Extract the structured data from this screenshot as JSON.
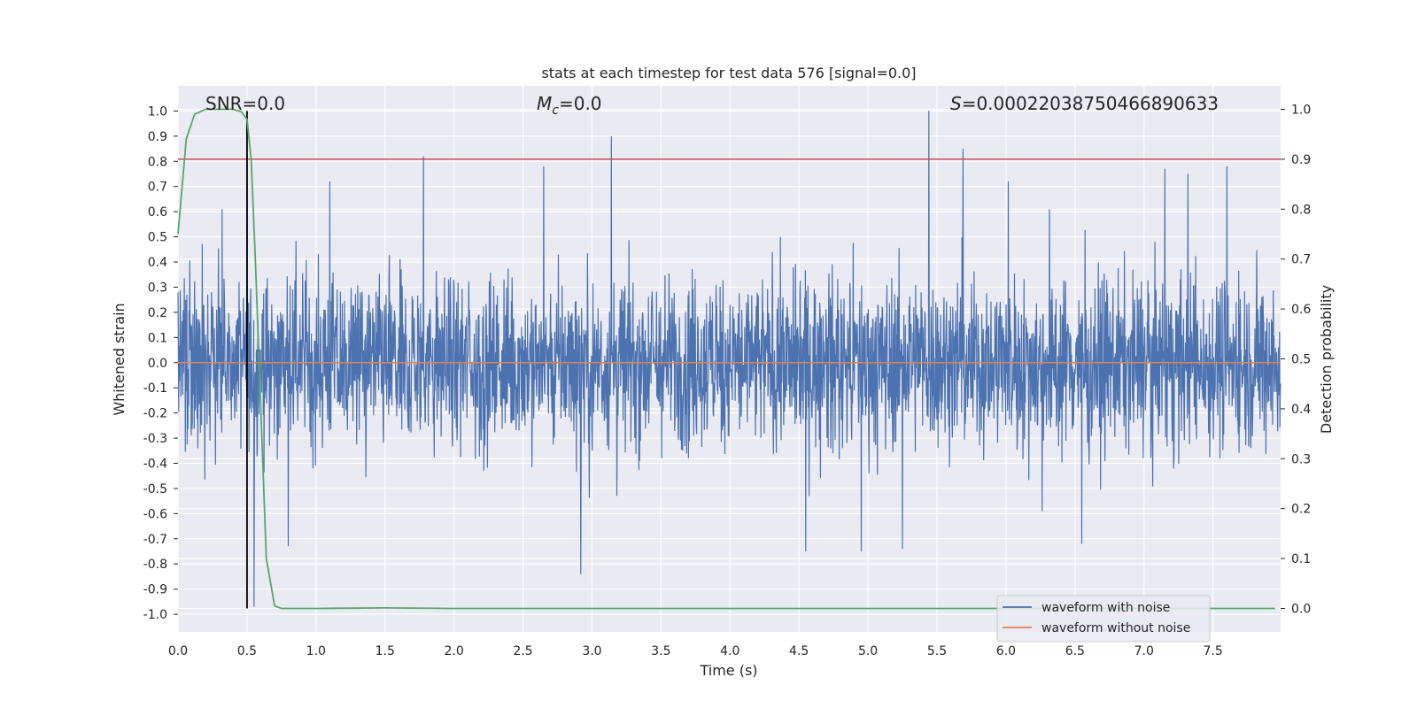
{
  "chart_data": {
    "type": "line",
    "title": "stats at each timestep for test data 576 [signal=0.0]",
    "xlabel": "Time (s)",
    "ylabel": "Whitened strain",
    "y2label": "Detection probability",
    "xlim": [
      0.0,
      7.99
    ],
    "ylim": [
      -1.07,
      1.1
    ],
    "y2lim": [
      -0.047,
      1.047
    ],
    "xticks": [
      0.0,
      0.5,
      1.0,
      1.5,
      2.0,
      2.5,
      3.0,
      3.5,
      4.0,
      4.5,
      5.0,
      5.5,
      6.0,
      6.5,
      7.0,
      7.5
    ],
    "xtick_labels": [
      "0.0",
      "0.5",
      "1.0",
      "1.5",
      "2.0",
      "2.5",
      "3.0",
      "3.5",
      "4.0",
      "4.5",
      "5.0",
      "5.5",
      "6.0",
      "6.5",
      "7.0",
      "7.5"
    ],
    "yticks": [
      1.0,
      0.9,
      0.8,
      0.7,
      0.6,
      0.5,
      0.4,
      0.3,
      0.2,
      0.1,
      0.0,
      -0.1,
      -0.2,
      -0.3,
      -0.4,
      -0.5,
      -0.6,
      -0.7,
      -0.8,
      -0.9,
      -1.0
    ],
    "ytick_labels": [
      "1.0",
      "0.9",
      "0.8",
      "0.7",
      "0.6",
      "0.5",
      "0.4",
      "0.3",
      "0.2",
      "0.1",
      "0.0",
      "-0.1",
      "-0.2",
      "-0.3",
      "-0.4",
      "-0.5",
      "-0.6",
      "-0.7",
      "-0.8",
      "-0.9",
      "-1.0"
    ],
    "y2ticks": [
      1.0,
      0.9,
      0.8,
      0.7,
      0.6,
      0.5,
      0.4,
      0.3,
      0.2,
      0.1,
      0.0
    ],
    "y2tick_labels": [
      "1.0",
      "0.9",
      "0.8",
      "0.7",
      "0.6",
      "0.5",
      "0.4",
      "0.3",
      "0.2",
      "0.1",
      "0.0"
    ],
    "grid": true,
    "annotations": {
      "snr": "SNR=0.0",
      "mc_symbol": "M",
      "mc_subscript": "c",
      "mc_value": "=0.0",
      "s_symbol": "S",
      "s_value": "=0.00022038750466890633"
    },
    "series": [
      {
        "name": "waveform with noise",
        "color": "#4c72b0",
        "description_of_values": "dense noise, envelope ~±0.4 with spikes",
        "spikes": [
          {
            "x": 0.32,
            "y": 0.61
          },
          {
            "x": 0.5,
            "y": 0.97
          },
          {
            "x": 0.55,
            "y": -0.97
          },
          {
            "x": 0.8,
            "y": -0.73
          },
          {
            "x": 1.1,
            "y": 0.72
          },
          {
            "x": 1.78,
            "y": 0.82
          },
          {
            "x": 2.65,
            "y": 0.78
          },
          {
            "x": 2.92,
            "y": -0.84
          },
          {
            "x": 3.14,
            "y": 0.9
          },
          {
            "x": 4.55,
            "y": -0.75
          },
          {
            "x": 4.95,
            "y": -0.75
          },
          {
            "x": 5.25,
            "y": -0.74
          },
          {
            "x": 5.44,
            "y": 1.0
          },
          {
            "x": 5.69,
            "y": 0.85
          },
          {
            "x": 6.55,
            "y": -0.72
          },
          {
            "x": 7.15,
            "y": 0.77
          },
          {
            "x": 7.32,
            "y": 0.75
          },
          {
            "x": 7.6,
            "y": 0.78
          }
        ]
      },
      {
        "name": "waveform without noise",
        "color": "#dd8452",
        "values_constant": 0.0
      },
      {
        "name": "detection probability",
        "color": "#55a868",
        "axis": "y2",
        "x": [
          0.0,
          0.06,
          0.12,
          0.2,
          0.3,
          0.4,
          0.46,
          0.5,
          0.53,
          0.56,
          0.6,
          0.64,
          0.7,
          0.75,
          0.8,
          1.0,
          1.5,
          2.0,
          3.0,
          4.0,
          5.0,
          6.0,
          7.0,
          7.95
        ],
        "values": [
          0.75,
          0.94,
          0.99,
          1.0,
          1.0,
          1.0,
          0.995,
          0.98,
          0.9,
          0.7,
          0.4,
          0.1,
          0.005,
          0.0,
          0.0,
          0.0,
          0.001,
          0.0,
          0.0,
          0.0,
          0.0,
          0.0,
          0.0,
          0.0
        ]
      }
    ],
    "reference_lines": [
      {
        "axis": "y2",
        "value": 0.9,
        "color": "#c44e52"
      },
      {
        "axis": "x",
        "value": 0.5,
        "color": "#000000"
      }
    ],
    "legend": {
      "placement": "lower-right",
      "entries": [
        {
          "label": "waveform with noise",
          "color": "#4c72b0"
        },
        {
          "label": "waveform without noise",
          "color": "#dd8452"
        }
      ]
    }
  }
}
